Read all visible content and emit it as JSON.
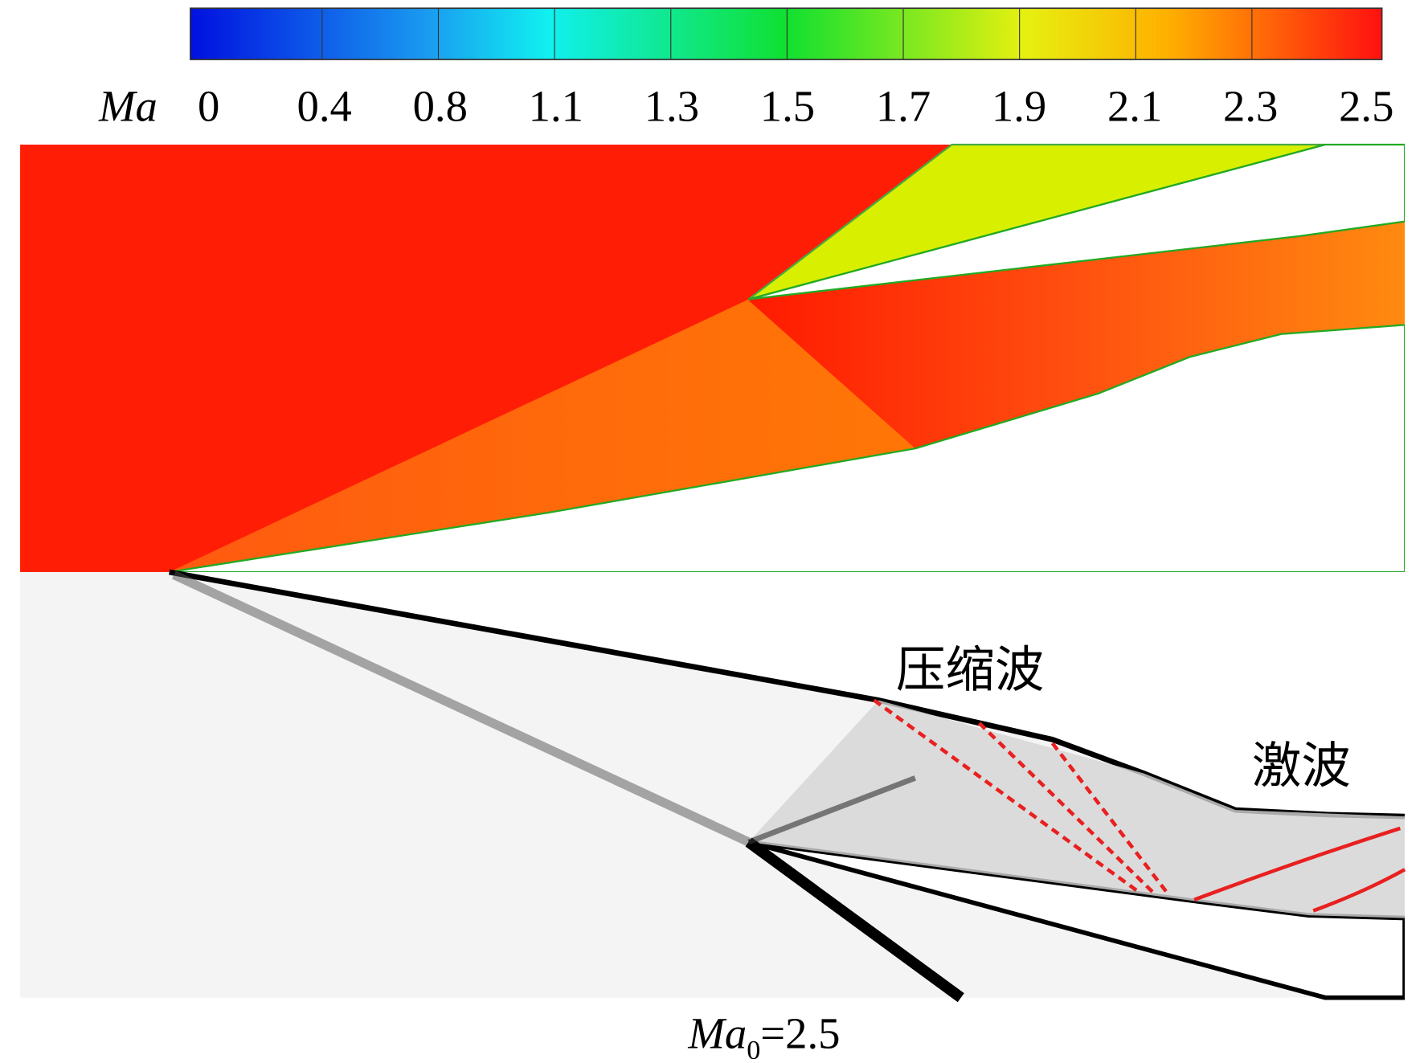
{
  "colorbar": {
    "label": "Ma",
    "ticks": [
      "0",
      "0.4",
      "0.8",
      "1.1",
      "1.3",
      "1.5",
      "1.7",
      "1.9",
      "2.1",
      "2.3",
      "2.5"
    ]
  },
  "annotations": {
    "compression_wave": "压缩波",
    "shock_wave": "激波"
  },
  "caption": {
    "symbol": "Ma",
    "subscript": "0",
    "value": "=2.5"
  }
}
